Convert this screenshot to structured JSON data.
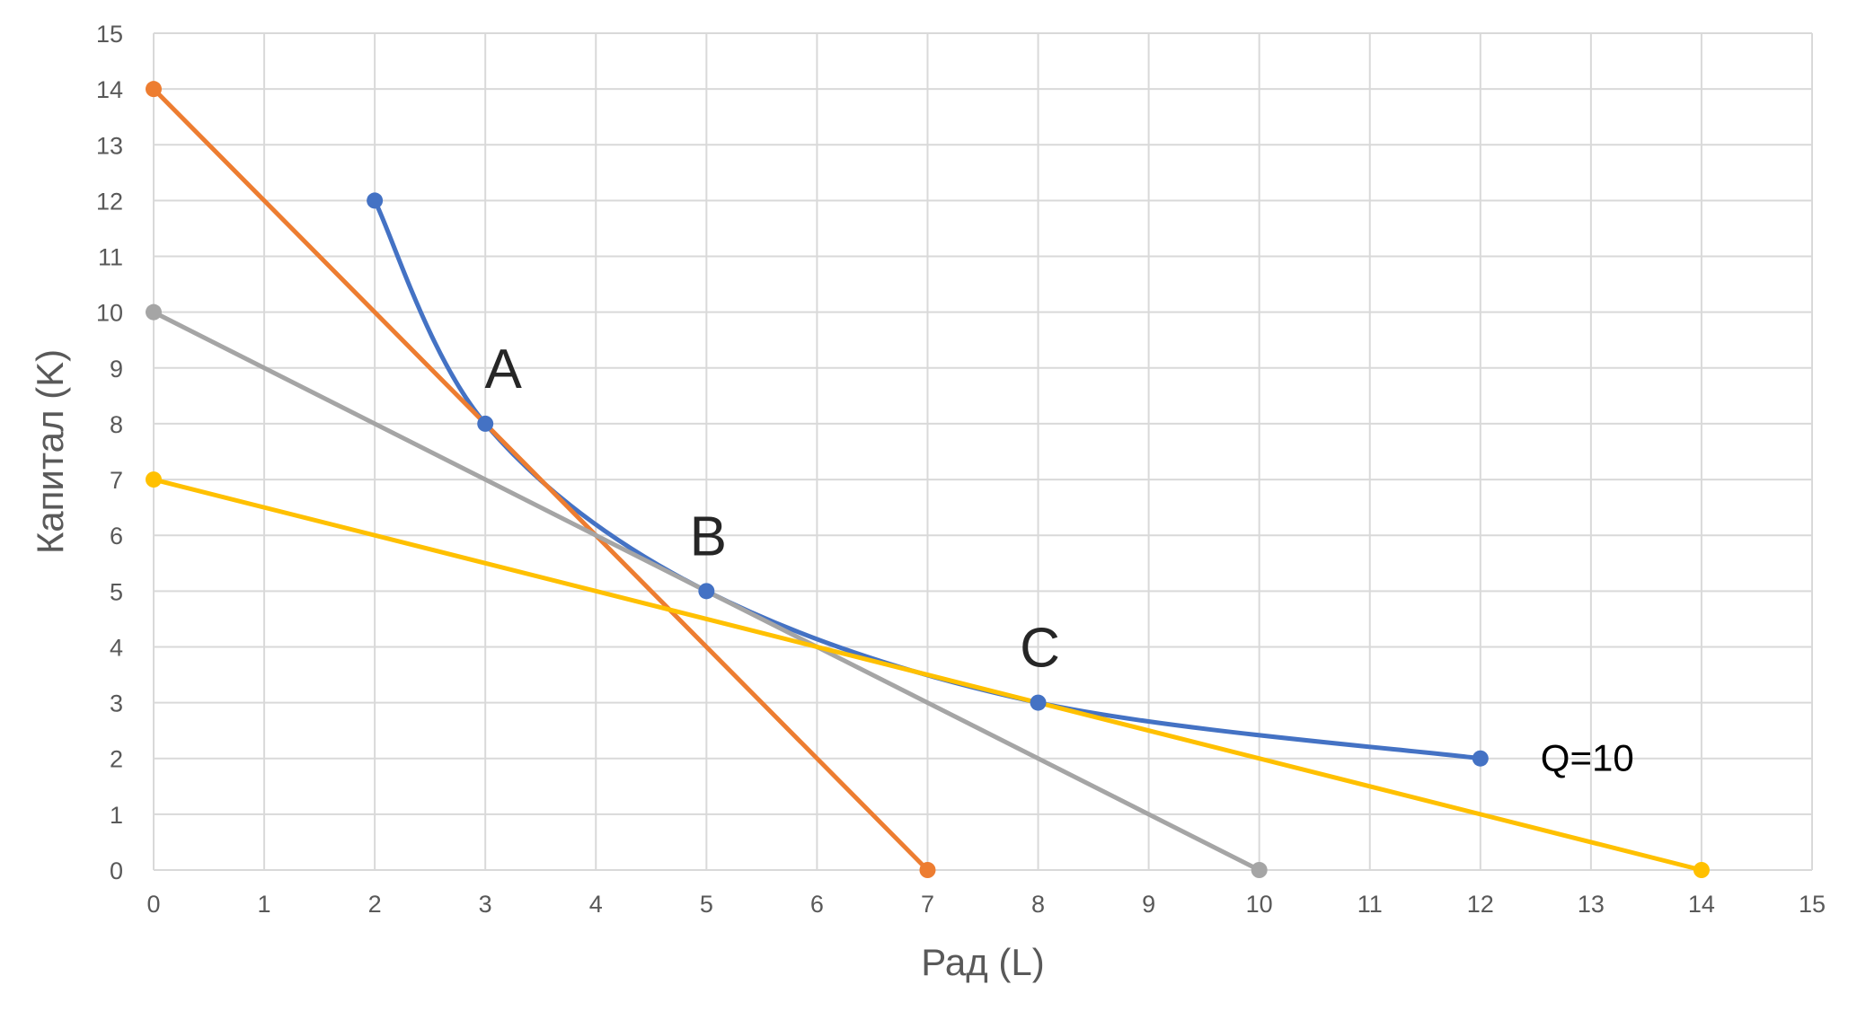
{
  "chart_data": {
    "type": "line",
    "xlabel": "Рад (L)",
    "ylabel": "Капитал (K)",
    "xlim": [
      0,
      15
    ],
    "ylim": [
      0,
      15
    ],
    "x_ticks": [
      "0",
      "1",
      "2",
      "3",
      "4",
      "5",
      "6",
      "7",
      "8",
      "9",
      "10",
      "11",
      "12",
      "13",
      "14",
      "15"
    ],
    "y_ticks": [
      "0",
      "1",
      "2",
      "3",
      "4",
      "5",
      "6",
      "7",
      "8",
      "9",
      "10",
      "11",
      "12",
      "13",
      "14",
      "15"
    ],
    "grid": true,
    "legend": "none",
    "series": [
      {
        "id": "isoquant",
        "color": "#4472c4",
        "smooth": true,
        "points": [
          [
            2,
            12
          ],
          [
            3,
            8
          ],
          [
            5,
            5
          ],
          [
            8,
            3
          ],
          [
            12,
            2
          ]
        ],
        "label": "Q=10"
      },
      {
        "id": "isocost-orange",
        "color": "#ed7d31",
        "smooth": false,
        "points": [
          [
            0,
            14
          ],
          [
            7,
            0
          ]
        ]
      },
      {
        "id": "isocost-gray",
        "color": "#a5a5a5",
        "smooth": false,
        "points": [
          [
            0,
            10
          ],
          [
            10,
            0
          ]
        ]
      },
      {
        "id": "isocost-yellow",
        "color": "#ffc000",
        "smooth": false,
        "points": [
          [
            0,
            7
          ],
          [
            14,
            0
          ]
        ]
      }
    ],
    "annotations": [
      {
        "text": "A",
        "x": 3,
        "y": 8
      },
      {
        "text": "B",
        "x": 5,
        "y": 5
      },
      {
        "text": "C",
        "x": 8,
        "y": 3
      }
    ]
  }
}
